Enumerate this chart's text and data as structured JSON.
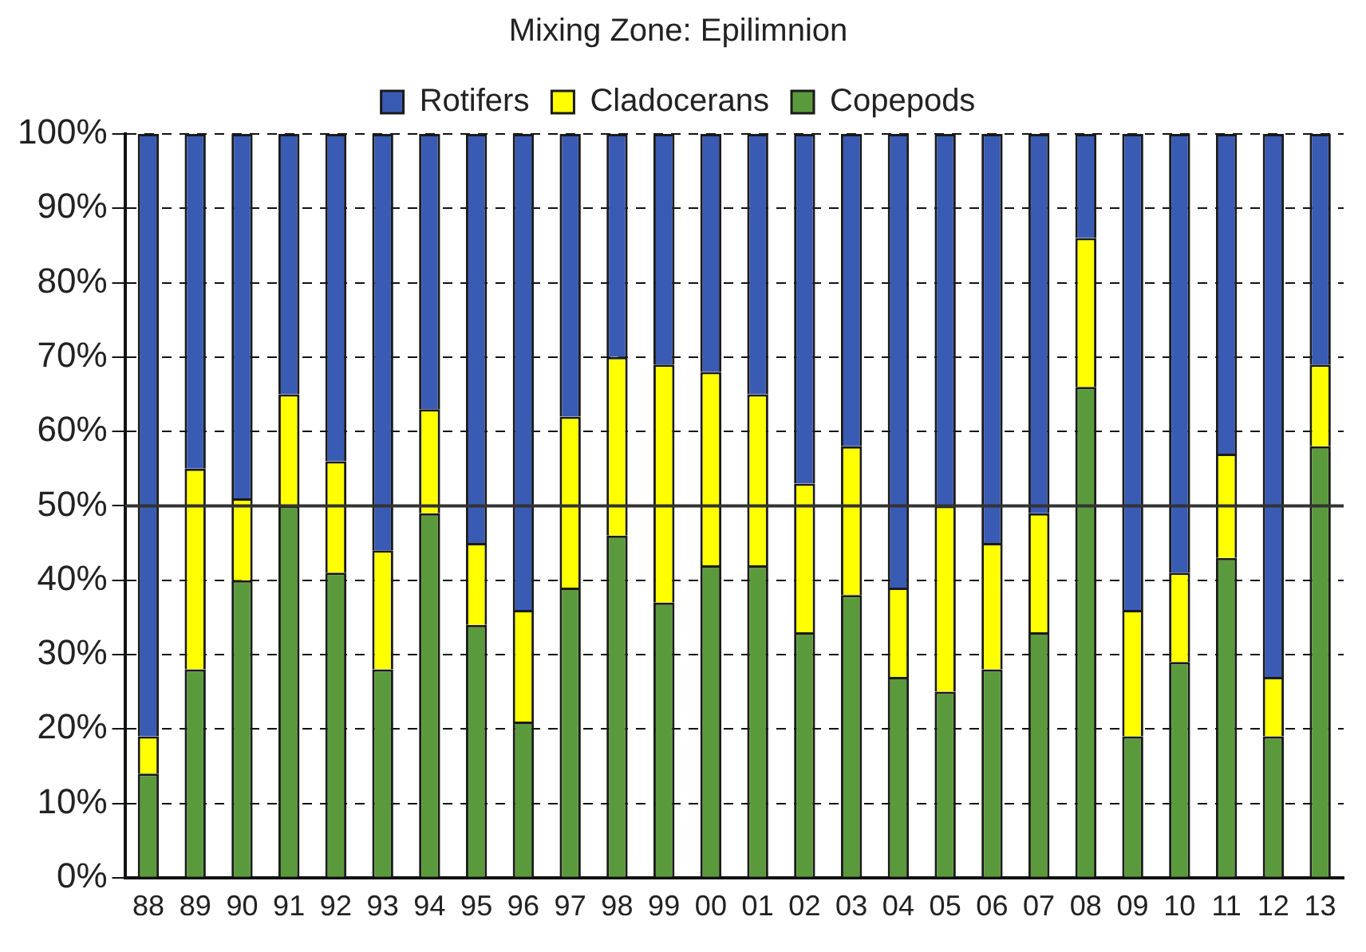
{
  "chart_data": {
    "type": "bar",
    "title": "Mixing Zone: Epilimnion",
    "stacked": true,
    "legend": "top",
    "grid": "y",
    "categories": [
      "88",
      "89",
      "90",
      "91",
      "92",
      "93",
      "94",
      "95",
      "96",
      "97",
      "98",
      "99",
      "00",
      "01",
      "02",
      "03",
      "04",
      "05",
      "06",
      "07",
      "08",
      "09",
      "10",
      "11",
      "12",
      "13"
    ],
    "series": [
      {
        "name": "Copepods",
        "color": "#5b9a3c",
        "values": [
          14,
          28,
          40,
          50,
          41,
          28,
          49,
          34,
          21,
          39,
          46,
          37,
          42,
          42,
          33,
          38,
          27,
          25,
          28,
          33,
          66,
          19,
          29,
          43,
          19,
          58
        ]
      },
      {
        "name": "Cladocerans",
        "color": "#ffff00",
        "values": [
          5,
          27,
          11,
          15,
          15,
          16,
          14,
          11,
          15,
          23,
          24,
          32,
          26,
          23,
          20,
          20,
          12,
          25,
          17,
          16,
          20,
          17,
          12,
          14,
          8,
          11
        ]
      },
      {
        "name": "Rotifers",
        "color": "#3a5bb3",
        "values": [
          81,
          45,
          49,
          35,
          44,
          56,
          37,
          55,
          64,
          38,
          30,
          31,
          32,
          35,
          47,
          42,
          61,
          50,
          55,
          51,
          14,
          64,
          59,
          43,
          73,
          31
        ]
      }
    ],
    "ylim": [
      0,
      100
    ],
    "yticks": [
      {
        "value": 0,
        "label": "0%"
      },
      {
        "value": 10,
        "label": "10%"
      },
      {
        "value": 20,
        "label": "20%"
      },
      {
        "value": 30,
        "label": "30%"
      },
      {
        "value": 40,
        "label": "40%"
      },
      {
        "value": 50,
        "label": "50%"
      },
      {
        "value": 60,
        "label": "60%"
      },
      {
        "value": 70,
        "label": "70%"
      },
      {
        "value": 80,
        "label": "80%"
      },
      {
        "value": 90,
        "label": "90%"
      },
      {
        "value": 100,
        "label": "100%"
      }
    ],
    "ref_lines": [
      {
        "axis": "y",
        "value": 50,
        "color": "#333333"
      }
    ]
  }
}
